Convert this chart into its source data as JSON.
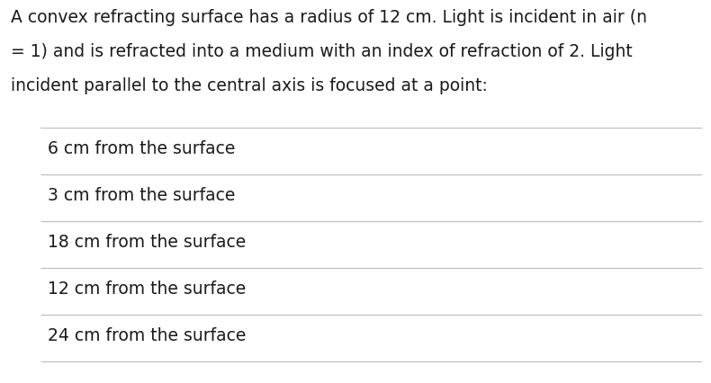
{
  "question_text_lines": [
    "A convex refracting surface has a radius of 12 cm. Light is incident in air (n",
    "= 1) and is refracted into a medium with an index of refraction of 2. Light",
    "incident parallel to the central axis is focused at a point:"
  ],
  "options": [
    "6 cm from the surface",
    "3 cm from the surface",
    "18 cm from the surface",
    "12 cm from the surface",
    "24 cm from the surface"
  ],
  "background_color": "#ffffff",
  "text_color": "#1a1a1a",
  "divider_color": "#c0c0c0",
  "question_font_size": 13.5,
  "option_font_size": 13.5,
  "fig_width": 7.9,
  "fig_height": 4.26,
  "dpi": 100
}
